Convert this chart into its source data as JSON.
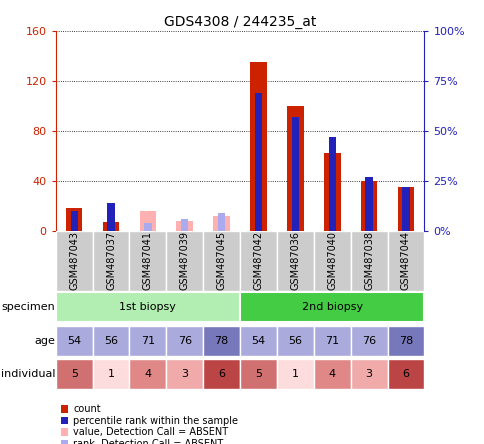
{
  "title": "GDS4308 / 244235_at",
  "samples": [
    "GSM487043",
    "GSM487037",
    "GSM487041",
    "GSM487039",
    "GSM487045",
    "GSM487042",
    "GSM487036",
    "GSM487040",
    "GSM487038",
    "GSM487044"
  ],
  "count_values": [
    18,
    7,
    2,
    2,
    2,
    135,
    100,
    62,
    40,
    35
  ],
  "percentile_values_pct": [
    10,
    14,
    null,
    null,
    null,
    69,
    57,
    47,
    27,
    22
  ],
  "absent_count": [
    null,
    null,
    16,
    8,
    12,
    null,
    null,
    null,
    null,
    null
  ],
  "absent_rank_pct": [
    null,
    null,
    4,
    6,
    9,
    null,
    null,
    null,
    null,
    null
  ],
  "ylim_left": [
    0,
    160
  ],
  "ylim_right": [
    0,
    100
  ],
  "yticks_left": [
    0,
    40,
    80,
    120,
    160
  ],
  "yticks_right": [
    0,
    25,
    50,
    75,
    100
  ],
  "ytick_labels_left": [
    "0",
    "40",
    "80",
    "120",
    "160"
  ],
  "ytick_labels_right": [
    "0%",
    "25%",
    "50%",
    "75%",
    "100%"
  ],
  "specimen_groups": [
    {
      "label": "1st biopsy",
      "indices": [
        0,
        1,
        2,
        3,
        4
      ],
      "color": "#B2EEB2"
    },
    {
      "label": "2nd biopsy",
      "indices": [
        5,
        6,
        7,
        8,
        9
      ],
      "color": "#44CC44"
    }
  ],
  "age_values": [
    54,
    56,
    71,
    76,
    78,
    54,
    56,
    71,
    76,
    78
  ],
  "age_colors": [
    "#AAAADD",
    "#AAAADD",
    "#AAAADD",
    "#AAAADD",
    "#7777BB",
    "#AAAADD",
    "#AAAADD",
    "#AAAADD",
    "#AAAADD",
    "#7777BB"
  ],
  "individual_values": [
    5,
    1,
    4,
    3,
    6,
    5,
    1,
    4,
    3,
    6
  ],
  "individual_colors": {
    "1": "#FCDCDC",
    "3": "#F0AAAA",
    "4": "#E08888",
    "5": "#D07070",
    "6": "#BB4444"
  },
  "color_count": "#CC2200",
  "color_percentile": "#2222BB",
  "color_absent_count": "#FFB0B0",
  "color_absent_rank": "#AAAAEE",
  "legend_items": [
    {
      "color": "#CC2200",
      "label": "count"
    },
    {
      "color": "#2222BB",
      "label": "percentile rank within the sample"
    },
    {
      "color": "#FFB0B0",
      "label": "value, Detection Call = ABSENT"
    },
    {
      "color": "#AAAAEE",
      "label": "rank, Detection Call = ABSENT"
    }
  ],
  "background_color": "#ffffff",
  "left_axis_color": "#CC2200",
  "right_axis_color": "#2222BB",
  "xticklabel_bg": "#CCCCCC"
}
